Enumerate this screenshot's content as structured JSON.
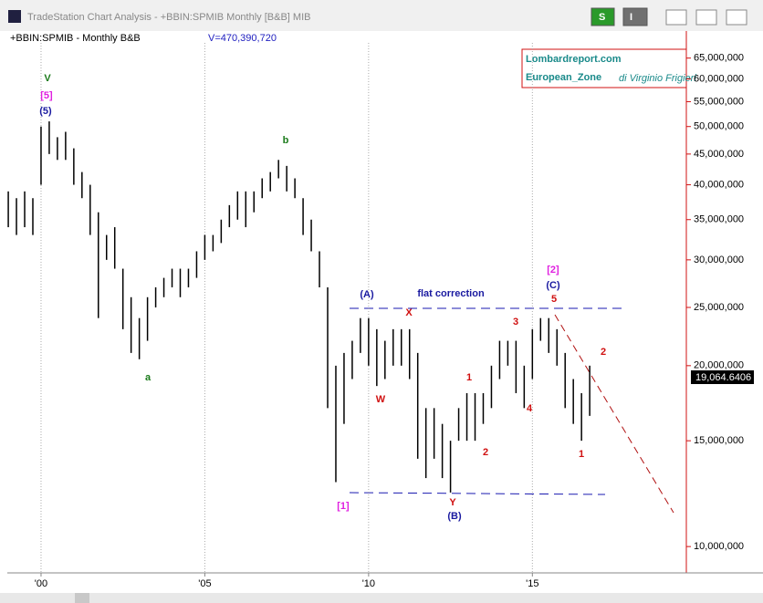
{
  "window_title": "TradeStation Chart Analysis - +BBIN:SPMIB Monthly [B&B]  MIB",
  "toolbar": [
    "S",
    "I"
  ],
  "chart_data": {
    "type": "ohlc",
    "title": "+BBIN:SPMIB - Monthly  B&B",
    "subtitle": "V=470,390,720",
    "legend_box": [
      "Lombardreport.com",
      "European_Zone",
      "di Virginio Frigieri"
    ],
    "last_price_label": "19,064.6406",
    "color": "#000000",
    "log_scale": true,
    "xgrid": true,
    "xlim": [
      1998.97,
      2019.7
    ],
    "xticks": [
      {
        "value": 2000,
        "label": "'00"
      },
      {
        "value": 2005,
        "label": "'05"
      },
      {
        "value": 2010,
        "label": "'10"
      },
      {
        "value": 2015,
        "label": "'15"
      }
    ],
    "ylim": [
      9040000,
      68900000
    ],
    "yticks": [
      {
        "value": 10000000,
        "label": "10,000,000"
      },
      {
        "value": 15000000,
        "label": "15,000,000"
      },
      {
        "value": 20000000,
        "label": "20,000,000"
      },
      {
        "value": 25000000,
        "label": "25,000,000"
      },
      {
        "value": 30000000,
        "label": "30,000,000"
      },
      {
        "value": 35000000,
        "label": "35,000,000"
      },
      {
        "value": 40000000,
        "label": "40,000,000"
      },
      {
        "value": 45000000,
        "label": "45,000,000"
      },
      {
        "value": 50000000,
        "label": "50,000,000"
      },
      {
        "value": 55000000,
        "label": "55,000,000"
      },
      {
        "value": 60000000,
        "label": "60,000,000"
      },
      {
        "value": 65000000,
        "label": "65,000,000"
      }
    ],
    "x": [
      1999,
      1999.25,
      1999.5,
      1999.75,
      2000,
      2000.25,
      2000.5,
      2000.75,
      2001,
      2001.25,
      2001.5,
      2001.75,
      2002,
      2002.25,
      2002.5,
      2002.75,
      2003,
      2003.25,
      2003.5,
      2003.75,
      2004,
      2004.25,
      2004.5,
      2004.75,
      2005,
      2005.25,
      2005.5,
      2005.75,
      2006,
      2006.25,
      2006.5,
      2006.75,
      2007,
      2007.25,
      2007.5,
      2007.75,
      2008,
      2008.25,
      2008.5,
      2008.75,
      2009,
      2009.25,
      2009.5,
      2009.75,
      2010,
      2010.25,
      2010.5,
      2010.75,
      2011,
      2011.25,
      2011.5,
      2011.75,
      2012,
      2012.25,
      2012.5,
      2012.75,
      2013,
      2013.25,
      2013.5,
      2013.75,
      2014,
      2014.25,
      2014.5,
      2014.75,
      2015,
      2015.25,
      2015.5,
      2015.75,
      2016,
      2016.25,
      2016.5,
      2016.75
    ],
    "high": [
      39000000,
      38000000,
      39000000,
      38000000,
      50000000,
      51000000,
      48000000,
      49000000,
      46000000,
      42000000,
      40000000,
      36000000,
      33000000,
      34000000,
      29000000,
      26000000,
      24000000,
      26000000,
      27000000,
      28000000,
      29000000,
      29000000,
      29000000,
      31000000,
      33000000,
      33000000,
      35000000,
      37000000,
      39000000,
      39000000,
      39000000,
      41000000,
      42000000,
      44000000,
      43000000,
      41000000,
      38000000,
      35000000,
      31000000,
      27000000,
      20000000,
      21000000,
      22000000,
      24000000,
      24000000,
      23000000,
      22000000,
      23000000,
      23000000,
      23000000,
      21000000,
      17000000,
      17000000,
      16000000,
      15000000,
      17000000,
      18000000,
      18000000,
      18000000,
      20000000,
      22000000,
      22000000,
      22000000,
      20000000,
      23000000,
      24000000,
      24000000,
      23000000,
      21000000,
      19000000,
      18000000,
      20000000
    ],
    "low": [
      34000000,
      33000000,
      34000000,
      33000000,
      40000000,
      45000000,
      44000000,
      44000000,
      40000000,
      38000000,
      33000000,
      24000000,
      30000000,
      29000000,
      23000000,
      21000000,
      20500000,
      22000000,
      25000000,
      26000000,
      27000000,
      26000000,
      27000000,
      28000000,
      30000000,
      31000000,
      32000000,
      34000000,
      35000000,
      34000000,
      36000000,
      38000000,
      39000000,
      41000000,
      39000000,
      38000000,
      33000000,
      31000000,
      27000000,
      17000000,
      12800000,
      16000000,
      19000000,
      21000000,
      20000000,
      18500000,
      19000000,
      20000000,
      20000000,
      19000000,
      14000000,
      13000000,
      14000000,
      13000000,
      12300000,
      15000000,
      15000000,
      15000000,
      16000000,
      17000000,
      19000000,
      20000000,
      18000000,
      17000000,
      19000000,
      22000000,
      21000000,
      20000000,
      17000000,
      16000000,
      15000000,
      16500000
    ],
    "annotations": [
      {
        "text": "V",
        "color": "#1a7a1a"
      },
      {
        "text": "[5]",
        "color": "#e020e0"
      },
      {
        "text": "(5)",
        "color": "#1a1aa0"
      },
      {
        "text": "a",
        "color": "#1a7a1a"
      },
      {
        "text": "b",
        "color": "#1a7a1a"
      },
      {
        "text": "(A)",
        "color": "#1a1aa0"
      },
      {
        "text": "flat correction",
        "color": "#1a1aa0"
      },
      {
        "text": "X",
        "color": "#d01010"
      },
      {
        "text": "W",
        "color": "#d01010"
      },
      {
        "text": "1",
        "color": "#d01010"
      },
      {
        "text": "2",
        "color": "#d01010"
      },
      {
        "text": "Y",
        "color": "#d01010"
      },
      {
        "text": "(B)",
        "color": "#1a1aa0"
      },
      {
        "text": "[1]",
        "color": "#e020e0"
      },
      {
        "text": "3",
        "color": "#d01010"
      },
      {
        "text": "4",
        "color": "#d01010"
      },
      {
        "text": "5",
        "color": "#d01010"
      },
      {
        "text": "[2]",
        "color": "#e020e0"
      },
      {
        "text": "(C)",
        "color": "#1a1aa0"
      },
      {
        "text": "2",
        "color": "#d01010"
      },
      {
        "text": "1",
        "color": "#d01010"
      }
    ]
  }
}
